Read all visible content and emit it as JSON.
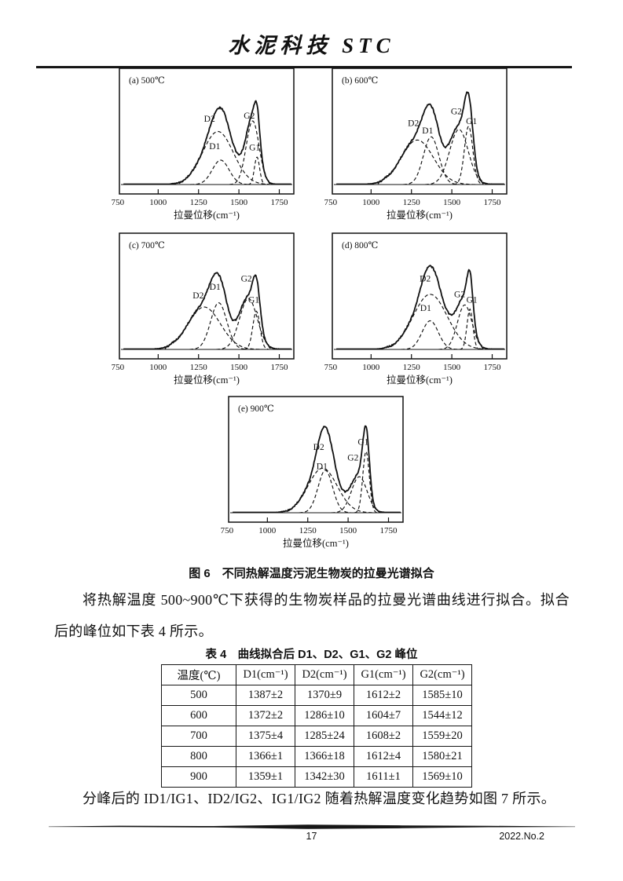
{
  "header": {
    "journal_title": "水泥科技 STC"
  },
  "figure": {
    "caption": "图 6　不同热解温度污泥生物炭的拉曼光谱拟合"
  },
  "paragraphs": {
    "p1": "将热解温度 500~900℃下获得的生物炭样品的拉曼光谱曲线进行拟合。拟合后的峰位如下表 4 所示。",
    "p2": "分峰后的 ID1/IG1、ID2/IG2、IG1/IG2 随着热解温度变化趋势如图 7 所示。"
  },
  "table": {
    "caption": "表 4　曲线拟合后 D1、D2、G1、G2 峰位",
    "headers": [
      "温度(℃)",
      "D1(cm⁻¹)",
      "D2(cm⁻¹)",
      "G1(cm⁻¹)",
      "G2(cm⁻¹)"
    ],
    "rows": [
      [
        "500",
        "1387±2",
        "1370±9",
        "1612±2",
        "1585±10"
      ],
      [
        "600",
        "1372±2",
        "1286±10",
        "1604±7",
        "1544±12"
      ],
      [
        "700",
        "1375±4",
        "1285±24",
        "1608±2",
        "1559±20"
      ],
      [
        "800",
        "1366±1",
        "1366±18",
        "1612±4",
        "1580±21"
      ],
      [
        "900",
        "1359±1",
        "1342±30",
        "1611±1",
        "1569±10"
      ]
    ]
  },
  "footer": {
    "page_number": "17",
    "issue": "2022.No.2"
  },
  "chart_data": [
    {
      "type": "line",
      "panel_label": "(a) 500℃",
      "temperature_c": 500,
      "xlabel": "拉曼位移(cm⁻¹)",
      "x_ticks": [
        750,
        1000,
        1250,
        1500,
        1750
      ],
      "x_range": [
        760,
        1840
      ],
      "grid": false,
      "note": "solid: measured Raman spectrum; dashed: fitted D1/D2/G1/G2 bands",
      "peaks": [
        {
          "name": "D1",
          "center": 1387,
          "amplitude": 0.23,
          "sigma": 52,
          "label_x": 1350,
          "label_y": 0.31
        },
        {
          "name": "D2",
          "center": 1370,
          "amplitude": 0.5,
          "sigma": 95,
          "label_x": 1318,
          "label_y": 0.57
        },
        {
          "name": "G1",
          "center": 1612,
          "amplitude": 0.26,
          "sigma": 16,
          "label_x": 1597,
          "label_y": 0.3
        },
        {
          "name": "G2",
          "center": 1585,
          "amplitude": 0.6,
          "sigma": 40,
          "label_x": 1564,
          "label_y": 0.6
        }
      ]
    },
    {
      "type": "line",
      "panel_label": "(b) 600℃",
      "temperature_c": 600,
      "xlabel": "拉曼位移(cm⁻¹)",
      "x_ticks": [
        750,
        1000,
        1250,
        1500,
        1750
      ],
      "x_range": [
        760,
        1840
      ],
      "grid": false,
      "note": "solid: measured Raman spectrum; dashed: fitted D1/D2/G1/G2 bands",
      "peaks": [
        {
          "name": "D1",
          "center": 1372,
          "amplitude": 0.45,
          "sigma": 48,
          "label_x": 1350,
          "label_y": 0.46
        },
        {
          "name": "D2",
          "center": 1286,
          "amplitude": 0.42,
          "sigma": 100,
          "label_x": 1262,
          "label_y": 0.53
        },
        {
          "name": "G1",
          "center": 1604,
          "amplitude": 0.55,
          "sigma": 26,
          "label_x": 1622,
          "label_y": 0.55
        },
        {
          "name": "G2",
          "center": 1544,
          "amplitude": 0.52,
          "sigma": 58,
          "label_x": 1528,
          "label_y": 0.64
        }
      ]
    },
    {
      "type": "line",
      "panel_label": "(c) 700℃",
      "temperature_c": 700,
      "xlabel": "拉曼位移(cm⁻¹)",
      "x_ticks": [
        750,
        1000,
        1250,
        1500,
        1750
      ],
      "x_range": [
        760,
        1840
      ],
      "grid": false,
      "note": "solid: measured Raman spectrum; dashed: fitted D1/D2/G1/G2 bands",
      "peaks": [
        {
          "name": "D1",
          "center": 1375,
          "amplitude": 0.44,
          "sigma": 50,
          "label_x": 1352,
          "label_y": 0.54
        },
        {
          "name": "D2",
          "center": 1285,
          "amplitude": 0.4,
          "sigma": 100,
          "label_x": 1248,
          "label_y": 0.46
        },
        {
          "name": "G1",
          "center": 1608,
          "amplitude": 0.36,
          "sigma": 22,
          "label_x": 1592,
          "label_y": 0.42
        },
        {
          "name": "G2",
          "center": 1559,
          "amplitude": 0.48,
          "sigma": 55,
          "label_x": 1546,
          "label_y": 0.62
        }
      ]
    },
    {
      "type": "line",
      "panel_label": "(d) 800℃",
      "temperature_c": 800,
      "xlabel": "拉曼位移(cm⁻¹)",
      "x_ticks": [
        750,
        1000,
        1250,
        1500,
        1750
      ],
      "x_range": [
        760,
        1840
      ],
      "grid": false,
      "note": "solid: measured Raman spectrum; dashed: fitted D1/D2/G1/G2 bands",
      "peaks": [
        {
          "name": "D1",
          "center": 1366,
          "amplitude": 0.27,
          "sigma": 50,
          "label_x": 1338,
          "label_y": 0.34
        },
        {
          "name": "D2",
          "center": 1366,
          "amplitude": 0.52,
          "sigma": 105,
          "label_x": 1335,
          "label_y": 0.62
        },
        {
          "name": "G1",
          "center": 1612,
          "amplitude": 0.38,
          "sigma": 18,
          "label_x": 1624,
          "label_y": 0.42
        },
        {
          "name": "G2",
          "center": 1580,
          "amplitude": 0.42,
          "sigma": 45,
          "label_x": 1548,
          "label_y": 0.47
        }
      ]
    },
    {
      "type": "line",
      "panel_label": "(e) 900℃",
      "temperature_c": 900,
      "xlabel": "拉曼位移(cm⁻¹)",
      "x_ticks": [
        750,
        1000,
        1250,
        1500,
        1750
      ],
      "x_range": [
        760,
        1840
      ],
      "grid": false,
      "note": "solid: measured Raman spectrum; dashed: fitted D1/D2/G1/G2 bands",
      "peaks": [
        {
          "name": "D1",
          "center": 1359,
          "amplitude": 0.4,
          "sigma": 45,
          "label_x": 1338,
          "label_y": 0.39
        },
        {
          "name": "D2",
          "center": 1342,
          "amplitude": 0.42,
          "sigma": 90,
          "label_x": 1318,
          "label_y": 0.57
        },
        {
          "name": "G1",
          "center": 1611,
          "amplitude": 0.58,
          "sigma": 20,
          "label_x": 1594,
          "label_y": 0.62
        },
        {
          "name": "G2",
          "center": 1569,
          "amplitude": 0.34,
          "sigma": 48,
          "label_x": 1530,
          "label_y": 0.47
        }
      ]
    }
  ]
}
